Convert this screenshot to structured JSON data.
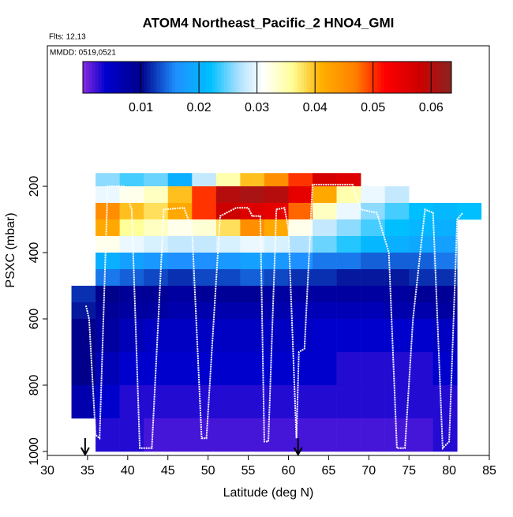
{
  "chart_data": {
    "type": "curtain",
    "title": "ATOM4 Northeast_Pacific_2 HNO4_GMI",
    "flights_label": "Flts: 12,13",
    "dates_label": "MMDD: 0519,0521",
    "x_label": "Latitude (deg N)",
    "y_label": "PSXC (mbar)",
    "xlim": [
      30,
      85
    ],
    "xticks": [
      30,
      35,
      40,
      45,
      50,
      55,
      60,
      65,
      70,
      75,
      80,
      85
    ],
    "ylim": [
      1012,
      -224
    ],
    "yticks": [
      200,
      400,
      600,
      800,
      1000
    ],
    "lat_edges": [
      33,
      36,
      39,
      42,
      45,
      48,
      51,
      54,
      57,
      60,
      63,
      66,
      69,
      72,
      75,
      78,
      81,
      84
    ],
    "pressure_edges": [
      160,
      200,
      250,
      300,
      350,
      400,
      450,
      500,
      550,
      600,
      700,
      800,
      900,
      1000
    ],
    "z": [
      [
        null,
        0.026,
        0.024,
        0.025,
        0.02,
        0.028,
        0.035,
        0.04,
        0.045,
        0.05,
        0.057,
        0.056,
        null,
        null,
        null,
        null,
        null
      ],
      [
        null,
        0.03,
        0.032,
        0.034,
        0.04,
        0.05,
        0.06,
        0.061,
        0.06,
        0.055,
        0.042,
        0.035,
        0.03,
        0.028,
        null,
        null,
        null
      ],
      [
        null,
        0.045,
        0.04,
        0.038,
        0.042,
        0.05,
        0.058,
        0.056,
        0.055,
        0.048,
        0.034,
        0.03,
        0.026,
        0.024,
        0.022,
        0.021,
        0.022
      ],
      [
        null,
        0.042,
        0.036,
        0.034,
        0.032,
        0.033,
        0.038,
        0.045,
        0.042,
        0.032,
        0.028,
        0.026,
        0.024,
        0.022,
        0.021,
        0.02,
        null
      ],
      [
        null,
        0.032,
        0.03,
        0.029,
        0.028,
        0.028,
        0.029,
        0.03,
        0.029,
        0.027,
        0.025,
        0.023,
        0.021,
        0.02,
        0.019,
        0.018,
        null
      ],
      [
        null,
        0.02,
        0.018,
        0.017,
        0.016,
        0.016,
        0.017,
        0.018,
        0.017,
        0.016,
        0.015,
        0.015,
        0.014,
        0.014,
        0.014,
        0.015,
        null
      ],
      [
        null,
        0.015,
        0.014,
        0.013,
        0.012,
        0.013,
        0.013,
        0.014,
        0.013,
        0.012,
        0.012,
        0.011,
        0.011,
        0.011,
        0.012,
        0.012,
        null
      ],
      [
        0.012,
        0.01,
        0.009,
        0.009,
        0.008,
        0.009,
        0.009,
        0.009,
        0.008,
        0.008,
        0.008,
        0.008,
        0.008,
        0.008,
        0.009,
        0.009,
        null
      ],
      [
        0.011,
        0.009,
        0.008,
        0.008,
        0.007,
        0.007,
        0.007,
        0.007,
        0.007,
        0.006,
        0.006,
        0.006,
        0.006,
        0.007,
        0.007,
        0.008,
        null
      ],
      [
        0.01,
        0.008,
        0.006,
        0.005,
        0.005,
        0.005,
        0.005,
        0.005,
        0.005,
        0.005,
        0.004,
        0.004,
        0.004,
        0.004,
        0.004,
        0.005,
        null
      ],
      [
        0.01,
        0.006,
        0.004,
        0.004,
        0.004,
        0.004,
        0.004,
        0.004,
        0.004,
        0.004,
        0.004,
        0.003,
        0.003,
        0.003,
        0.003,
        0.004,
        null
      ],
      [
        0.007,
        0.004,
        0.003,
        0.003,
        0.003,
        0.003,
        0.003,
        0.003,
        0.003,
        0.003,
        0.003,
        0.003,
        0.003,
        0.003,
        0.003,
        0.003,
        null
      ],
      [
        null,
        0.003,
        0.003,
        0.002,
        0.002,
        0.002,
        0.002,
        0.002,
        0.002,
        0.002,
        0.002,
        0.002,
        0.002,
        0.002,
        0.002,
        0.003,
        null
      ]
    ],
    "colorbar": {
      "lim": [
        0,
        0.0635
      ],
      "ticks": [
        0.01,
        0.02,
        0.03,
        0.04,
        0.05,
        0.06
      ],
      "stops": [
        [
          0,
          "#8a2be2"
        ],
        [
          0.004,
          "#0000cd"
        ],
        [
          0.01,
          "#00008b"
        ],
        [
          0.016,
          "#1e90ff"
        ],
        [
          0.022,
          "#00bfff"
        ],
        [
          0.027,
          "#b0e2ff"
        ],
        [
          0.031,
          "#ffffff"
        ],
        [
          0.036,
          "#ffff99"
        ],
        [
          0.041,
          "#ffb000"
        ],
        [
          0.047,
          "#ff7f00"
        ],
        [
          0.052,
          "#ff0000"
        ],
        [
          0.058,
          "#cd0000"
        ],
        [
          0.0635,
          "#8b2323"
        ]
      ]
    },
    "track": {
      "color": "#ffffff",
      "x": [
        34.8,
        35.2,
        36,
        36.5,
        37.5,
        39.5,
        40.5,
        41.5,
        43,
        44.5,
        47,
        48,
        49.2,
        49.8,
        51.5,
        53.5,
        55,
        55.5,
        56.5,
        57,
        57.5,
        58.5,
        59.5,
        60,
        61,
        61.3,
        62,
        63,
        68,
        69,
        71,
        72.5,
        73.5,
        74.5,
        75.5,
        77,
        78,
        79.2,
        80,
        81,
        81.7
      ],
      "y": [
        560,
        600,
        950,
        960,
        200,
        200,
        270,
        990,
        990,
        270,
        265,
        330,
        960,
        960,
        290,
        265,
        265,
        290,
        290,
        970,
        970,
        270,
        265,
        330,
        960,
        700,
        690,
        195,
        195,
        270,
        280,
        400,
        990,
        990,
        600,
        270,
        280,
        990,
        970,
        300,
        280
      ]
    },
    "arrows_x": [
      34.7,
      61.2
    ]
  }
}
